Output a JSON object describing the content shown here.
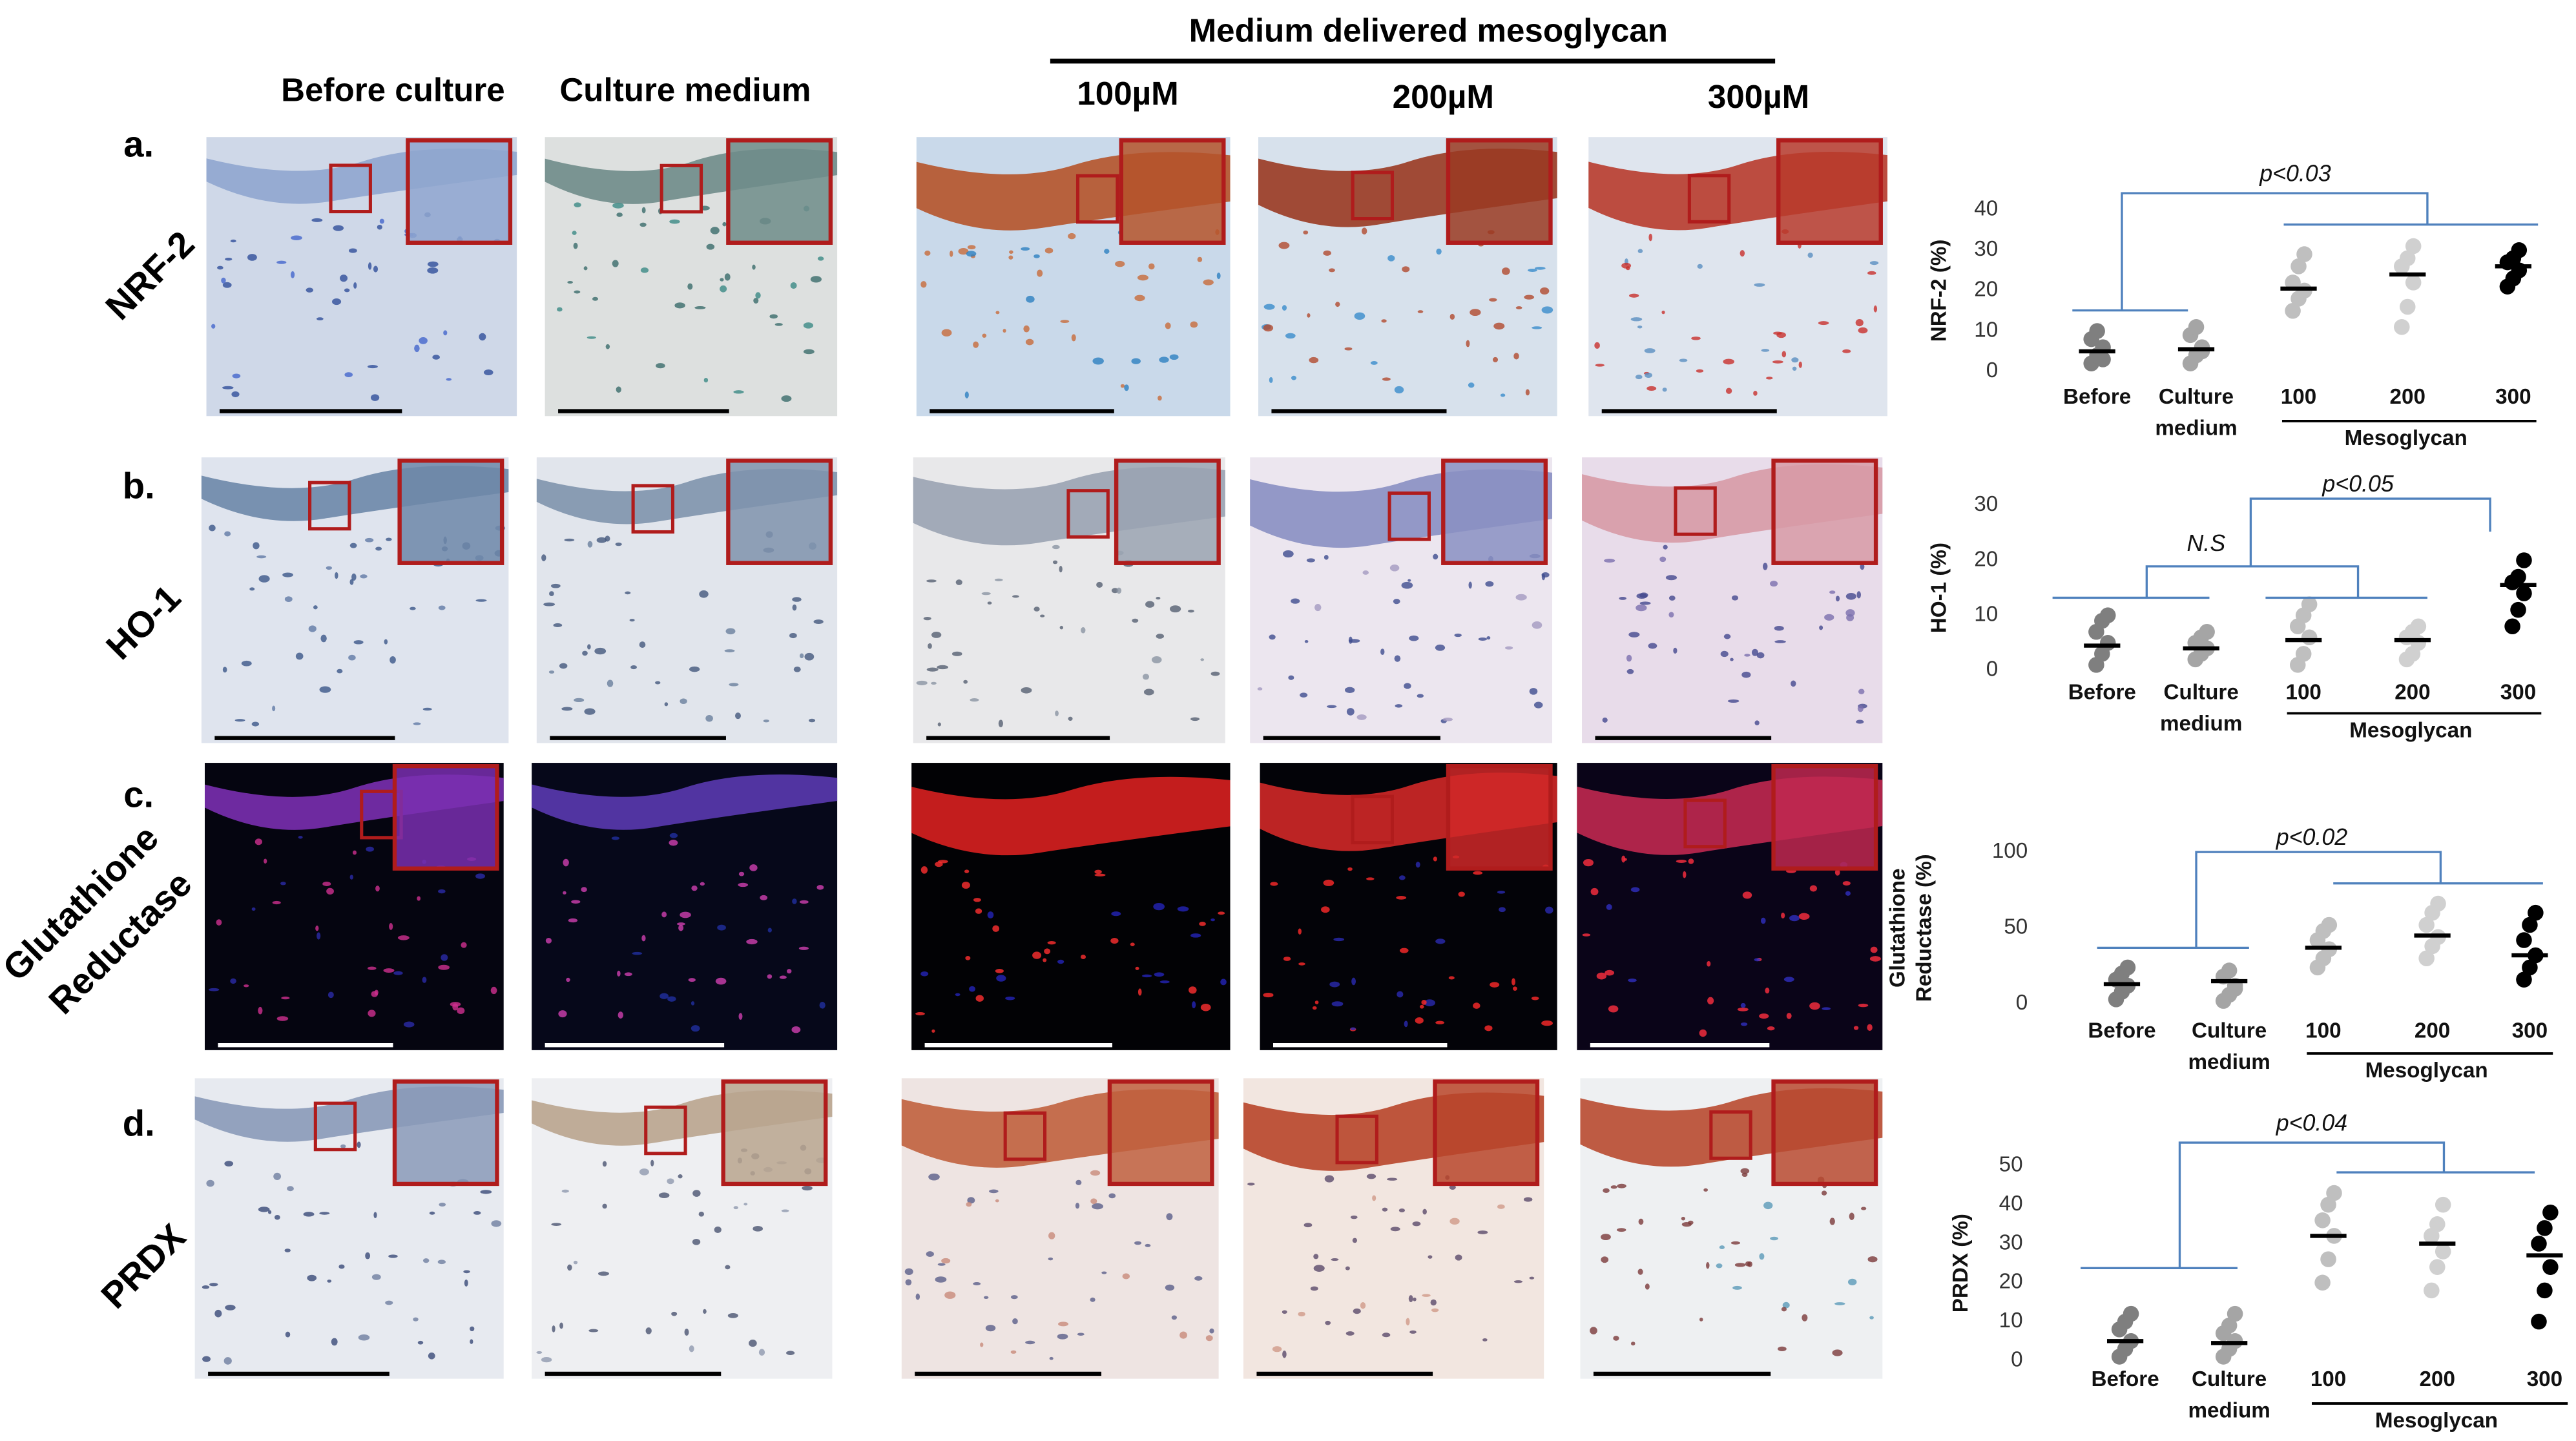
{
  "header": {
    "title": "Medium delivered mesoglycan",
    "columns": [
      "Before culture",
      "Culture medium",
      "100µM",
      "200µM",
      "300µM"
    ]
  },
  "rows": [
    {
      "letter": "a.",
      "marker": [
        "NRF-2"
      ]
    },
    {
      "letter": "b.",
      "marker": [
        "HO-1"
      ]
    },
    {
      "letter": "c.",
      "marker": [
        "Glutathione",
        "Reductase"
      ]
    },
    {
      "letter": "d.",
      "marker": [
        "PRDX"
      ]
    }
  ],
  "charts": [
    {
      "type": "dot",
      "ylabel": [
        "NRF-2 (%)"
      ],
      "ylim": [
        0,
        40
      ],
      "yticks": [
        0,
        10,
        20,
        30,
        40
      ],
      "categories": [
        [
          "Before"
        ],
        [
          "Culture",
          "medium"
        ],
        [
          "100"
        ],
        [
          "200"
        ],
        [
          "300"
        ]
      ],
      "group_label": "Mesoglycan",
      "annotations": [
        "p<0.03"
      ],
      "colors": [
        "#7f7f7f",
        "#a5a5a5",
        "#bfbfbf",
        "#d0d0d0",
        "#000000"
      ],
      "means": [
        5,
        5.5,
        20.5,
        24,
        26
      ],
      "points": [
        [
          2,
          4,
          6,
          8,
          10,
          3
        ],
        [
          2,
          4,
          6,
          9,
          11,
          5
        ],
        [
          15,
          18,
          20,
          22,
          26,
          29
        ],
        [
          11,
          16,
          22,
          26,
          28,
          31
        ],
        [
          21,
          23,
          25,
          27,
          28,
          30
        ]
      ]
    },
    {
      "type": "dot",
      "ylabel": [
        "HO-1 (%)"
      ],
      "ylim": [
        0,
        30
      ],
      "yticks": [
        0,
        10,
        20,
        30
      ],
      "categories": [
        [
          "Before"
        ],
        [
          "Culture",
          "medium"
        ],
        [
          "100"
        ],
        [
          "200"
        ],
        [
          "300"
        ]
      ],
      "group_label": "Mesoglycan",
      "annotations": [
        "N.S",
        "p<0.05"
      ],
      "colors": [
        "#7f7f7f",
        "#a5a5a5",
        "#bfbfbf",
        "#d0d0d0",
        "#000000"
      ],
      "means": [
        4.5,
        4,
        5.5,
        5.5,
        15.5
      ],
      "points": [
        [
          1,
          3,
          5,
          7,
          9,
          10
        ],
        [
          2,
          3,
          4,
          5,
          6,
          7
        ],
        [
          1,
          3,
          6,
          8,
          10,
          12
        ],
        [
          2,
          3,
          5,
          6,
          7,
          8
        ],
        [
          8,
          11,
          14,
          16,
          17,
          20
        ]
      ]
    },
    {
      "type": "dot",
      "ylabel": [
        "Glutathione",
        "Reductase (%)"
      ],
      "ylim": [
        0,
        100
      ],
      "yticks": [
        0,
        50,
        100
      ],
      "categories": [
        [
          "Before"
        ],
        [
          "Culture",
          "medium"
        ],
        [
          "100"
        ],
        [
          "200"
        ],
        [
          "300"
        ]
      ],
      "group_label": "Mesoglycan",
      "annotations": [
        "p<0.02"
      ],
      "colors": [
        "#7f7f7f",
        "#a5a5a5",
        "#bfbfbf",
        "#d0d0d0",
        "#000000"
      ],
      "means": [
        13,
        15,
        37,
        45,
        32
      ],
      "points": [
        [
          3,
          8,
          12,
          16,
          20,
          24
        ],
        [
          2,
          6,
          12,
          18,
          22,
          10
        ],
        [
          24,
          30,
          36,
          42,
          48,
          52
        ],
        [
          30,
          38,
          44,
          52,
          60,
          66
        ],
        [
          16,
          24,
          32,
          42,
          52,
          60
        ]
      ]
    },
    {
      "type": "dot",
      "ylabel": [
        "PRDX (%)"
      ],
      "ylim": [
        0,
        50
      ],
      "yticks": [
        0,
        10,
        20,
        30,
        40,
        50
      ],
      "categories": [
        [
          "Before"
        ],
        [
          "Culture",
          "medium"
        ],
        [
          "100"
        ],
        [
          "200"
        ],
        [
          "300"
        ]
      ],
      "group_label": "Mesoglycan",
      "annotations": [
        "p<0.04"
      ],
      "colors": [
        "#7f7f7f",
        "#a5a5a5",
        "#bfbfbf",
        "#d0d0d0",
        "#000000"
      ],
      "means": [
        5,
        4.5,
        32,
        30,
        27
      ],
      "points": [
        [
          1,
          3,
          5,
          8,
          10,
          12
        ],
        [
          1,
          3,
          5,
          7,
          9,
          12
        ],
        [
          20,
          26,
          32,
          36,
          40,
          43
        ],
        [
          18,
          24,
          28,
          32,
          35,
          40
        ],
        [
          10,
          18,
          24,
          30,
          34,
          38
        ]
      ]
    }
  ]
}
